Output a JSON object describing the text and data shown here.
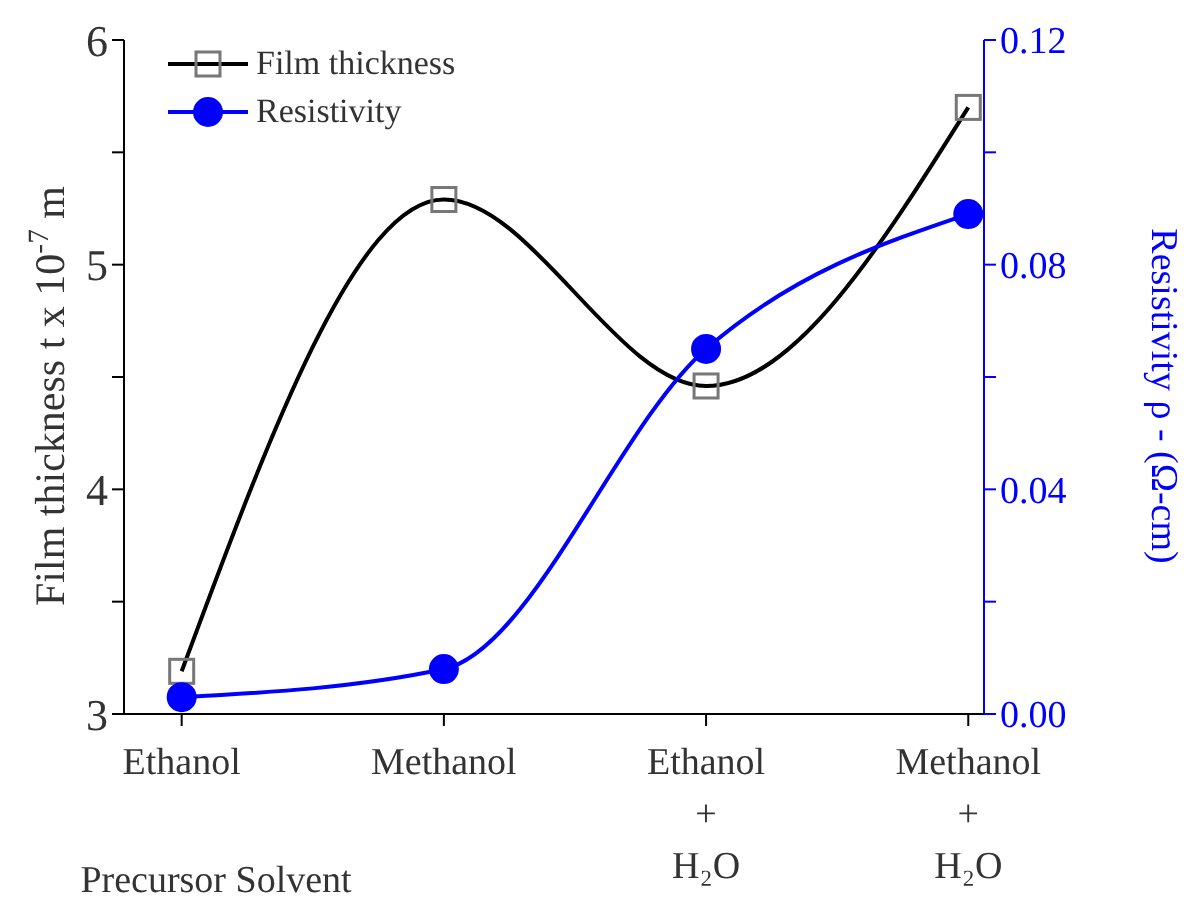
{
  "chart_data": {
    "type": "line",
    "categories": [
      "Ethanol",
      "Methanol",
      "Ethanol + H₂O",
      "Methanol + H₂O"
    ],
    "xlabel": "Precursor Solvent",
    "ylabel": "Film thickness t x 10$^{-7}$ m",
    "y2label": "Resistivity ρ - (Ω-cm)",
    "series": [
      {
        "name": "Film thickness",
        "color": "#000000",
        "marker": "square",
        "values": [
          3.19,
          5.29,
          4.46,
          5.7
        ]
      },
      {
        "name": "Resistivity",
        "color": "#0000ff",
        "marker": "circle",
        "axis": "y2",
        "values": [
          0.003,
          0.008,
          0.065,
          0.089
        ]
      }
    ],
    "ylim": [
      3,
      6
    ],
    "yticks": [
      3,
      {
        "value": 3.5,
        "label": null
      },
      4,
      {
        "value": 4.5,
        "label": null
      },
      5,
      {
        "value": 5.5,
        "label": null
      },
      6
    ],
    "y2lim": [
      0,
      0.12
    ],
    "y2ticks": [
      {
        "value": 0,
        "label": "0.00"
      },
      {
        "value": 0.02,
        "label": null
      },
      0.04,
      {
        "value": 0.06,
        "label": null
      },
      0.08,
      {
        "value": 0.1,
        "label": null
      },
      0.12
    ],
    "legend": "top left",
    "grid": false
  }
}
